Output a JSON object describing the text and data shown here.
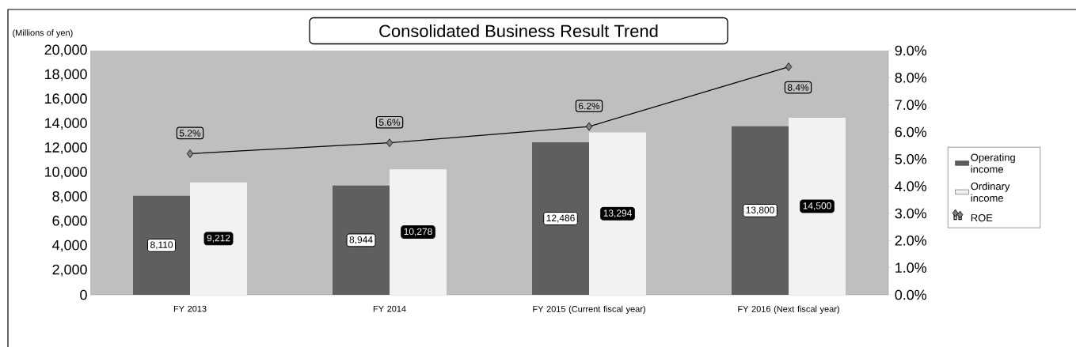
{
  "chart_data": {
    "type": "bar",
    "title": "Consolidated Business Result Trend",
    "ylabel": "(Millions of yen)",
    "categories": [
      "FY 2013",
      "FY 2014",
      "FY 2015 (Current fiscal year)",
      "FY 2016 (Next fiscal year)"
    ],
    "series": [
      {
        "name": "Operating income",
        "color": "#5f5f5f",
        "values": [
          8110,
          8944,
          12486,
          13800
        ],
        "value_labels": [
          "8,110",
          "8,944",
          "12,486",
          "13,800"
        ]
      },
      {
        "name": "Ordinary income",
        "color": "#f2f2f2",
        "values": [
          9212,
          10278,
          13294,
          14500
        ],
        "value_labels": [
          "9,212",
          "10,278",
          "13,294",
          "14,500"
        ]
      },
      {
        "name": "ROE",
        "type": "line",
        "axis": "y2",
        "color": "#000000",
        "marker": "diamond",
        "line_style": "solid",
        "values": [
          5.2,
          5.6,
          6.2,
          8.4
        ],
        "value_labels": [
          "5.2%",
          "5.6%",
          "6.2%",
          "8.4%"
        ]
      }
    ],
    "ylim": [
      0,
      20000
    ],
    "yticks": [
      0,
      {
        "value": 2000,
        "label": "2,000"
      },
      {
        "value": 4000,
        "label": "4,000"
      },
      {
        "value": 6000,
        "label": "6,000"
      },
      {
        "value": 8000,
        "label": "8,000"
      },
      {
        "value": 10000,
        "label": "10,000"
      },
      {
        "value": 12000,
        "label": "12,000"
      },
      {
        "value": 14000,
        "label": "14,000"
      },
      {
        "value": 16000,
        "label": "16,000"
      },
      {
        "value": 18000,
        "label": "18,000"
      },
      {
        "value": 20000,
        "label": "20,000"
      }
    ],
    "y2lim": [
      0,
      9
    ],
    "y2ticks": [
      {
        "value": 0,
        "label": "0.0%"
      },
      {
        "value": 1,
        "label": "1.0%"
      },
      {
        "value": 2,
        "label": "2.0%"
      },
      {
        "value": 3,
        "label": "3.0%"
      },
      {
        "value": 4,
        "label": "4.0%"
      },
      {
        "value": 5,
        "label": "5.0%"
      },
      {
        "value": 6,
        "label": "6.0%"
      },
      {
        "value": 7,
        "label": "7.0%"
      },
      {
        "value": 8,
        "label": "8.0%"
      },
      {
        "value": 9,
        "label": "9.0%"
      }
    ],
    "legend": "right"
  }
}
